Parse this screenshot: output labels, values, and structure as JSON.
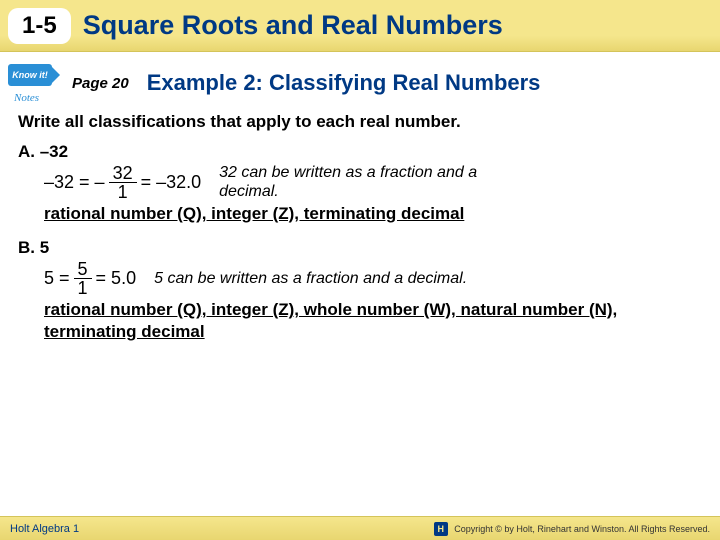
{
  "header": {
    "lesson_number": "1-5",
    "title": "Square Roots and Real Numbers"
  },
  "subheader": {
    "know_it_label": "Know it!",
    "notes_label": "Notes",
    "page_ref": "Page 20",
    "example_title": "Example 2: Classifying Real Numbers"
  },
  "prompt": "Write all classifications that apply to each real number.",
  "item_a": {
    "label": "A. –32",
    "eq_prefix": "–32 = –",
    "frac_num": "32",
    "frac_den": "1",
    "eq_suffix": " = –32.0",
    "note": "32 can be written as a fraction and a decimal.",
    "classifications": "rational number (Q), integer (Z), terminating decimal"
  },
  "item_b": {
    "label": "B.  5",
    "eq_prefix": "5 = ",
    "frac_num": "5",
    "frac_den": "1",
    "eq_suffix": " = 5.0",
    "note": "5 can be written as a fraction and a decimal.",
    "classifications": "rational number (Q), integer (Z), whole number (W), natural number (N), terminating decimal"
  },
  "footer": {
    "left": "Holt Algebra 1",
    "right": "Copyright © by Holt, Rinehart and Winston. All Rights Reserved."
  },
  "colors": {
    "header_bg": "#f5e68c",
    "title_color": "#003984",
    "text_color": "#000000"
  }
}
